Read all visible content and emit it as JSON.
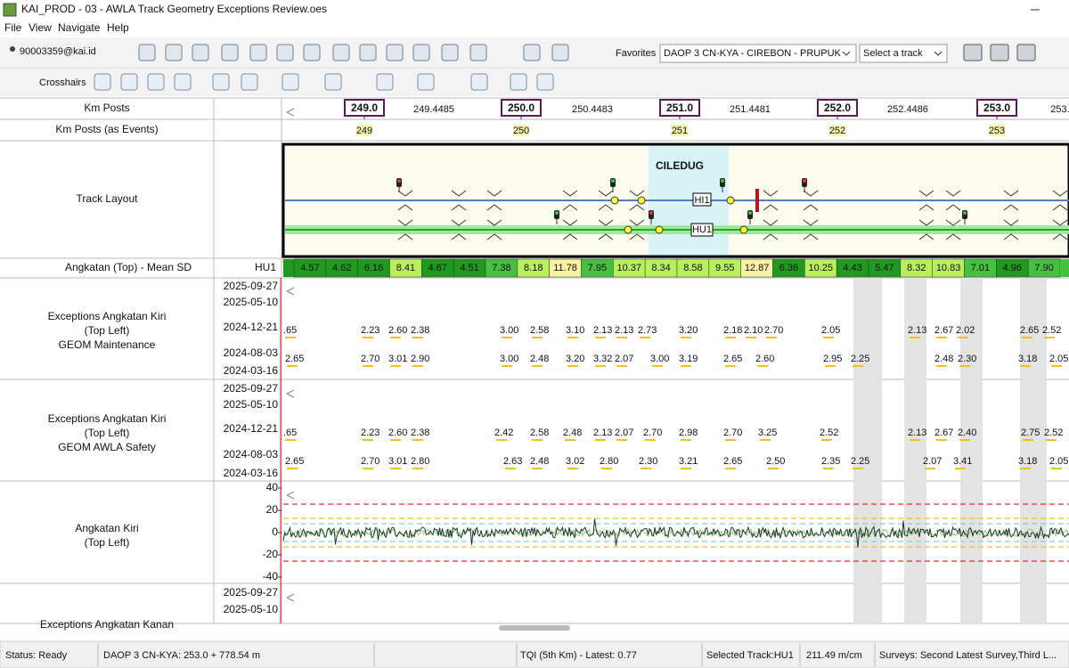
{
  "window": {
    "title": "KAI_PROD - 03 - AWLA Track Geometry Exceptions Review.oes"
  },
  "menu": [
    "File",
    "View",
    "Navigate",
    "Help"
  ],
  "toolbar": {
    "user": "90003359@kai.id",
    "favorites": "Favorites",
    "route": "DAOP 3 CN-KYA - CIREBON - PRUPUK",
    "track_select": "Select a track",
    "crosshairs": "Crosshairs"
  },
  "rows": {
    "km_posts": "Km Posts",
    "km_events": "Km Posts (as Events)",
    "track_layout": "Track Layout",
    "mean_sd": "Angkatan (Top) - Mean SD",
    "mean_sd_track": "HU1",
    "panel1": [
      "Exceptions Angkatan Kiri",
      "(Top Left)",
      "GEOM Maintenance"
    ],
    "panel2": [
      "Exceptions Angkatan Kiri",
      "(Top Left)",
      "GEOM AWLA Safety"
    ],
    "chart": [
      "Angkatan Kiri",
      "(Top Left)"
    ],
    "panel3": [
      "Exceptions Angkatan Kanan"
    ]
  },
  "km_posts": {
    "major": [
      "249.0",
      "250.0",
      "251.0",
      "252.0",
      "253.0"
    ],
    "minor": [
      "249.4485",
      "250.4483",
      "251.4481",
      "252.4486",
      "253."
    ]
  },
  "km_events": [
    "249",
    "250",
    "251",
    "252",
    "253"
  ],
  "track_layout": {
    "station": "CILEDUG",
    "tracks": [
      "HI1",
      "HU1"
    ]
  },
  "mean_sd": [
    "4.57",
    "4.62",
    "6.16",
    "8.41",
    "4.67",
    "4.51",
    "7.38",
    "8.18",
    "11.78",
    "7.95",
    "10.37",
    "8.34",
    "8.58",
    "9.55",
    "12.87",
    "6.36",
    "10.25",
    "4.43",
    "5.47",
    "8.32",
    "10.83",
    "7.01",
    "4.96",
    "7.90"
  ],
  "dates": [
    "2025-09-27",
    "2025-05-10",
    "2024-12-21",
    "2024-08-03",
    "2024-03-16"
  ],
  "exceptions": [
    {
      "rows": [
        [
          ".65",
          "2.23",
          "2.60",
          "2.38",
          "3.00",
          "2.58",
          "3.10",
          "2.13",
          "2.13",
          "2.73",
          "3.20",
          "2.18",
          "2.10",
          "2.70",
          "2.05",
          "2.13",
          "2.67",
          "2.02",
          "2.65",
          "2.52"
        ],
        [
          "2.65",
          "2.70",
          "3.01",
          "2.90",
          "3.00",
          "2.48",
          "3.20",
          "3.32",
          "2.07",
          "3.00",
          "3.19",
          "2.65",
          "2.60",
          "2.95",
          "2.25",
          "2.48",
          "2.30",
          "3.18",
          "2.05"
        ]
      ]
    },
    {
      "rows": [
        [
          ".65",
          "2.23",
          "2.60",
          "2.38",
          "2.42",
          "2.58",
          "2.48",
          "2.13",
          "2.07",
          "2.70",
          "2.98",
          "2.70",
          "3.25",
          "2.52",
          "2.13",
          "2.67",
          "2.40",
          "2.75",
          "2.52"
        ],
        [
          "2.65",
          "2.70",
          "3.01",
          "2.80",
          "2.63",
          "2.48",
          "3.02",
          "2.80",
          "2.30",
          "3.21",
          "2.65",
          "2.50",
          "2.35",
          "2.25",
          "2.07",
          "3.41",
          "3.18",
          "2.05"
        ]
      ]
    }
  ],
  "angkatan_chart": {
    "ylim": [
      -40,
      40
    ],
    "yticks": [
      40,
      20,
      0,
      -20,
      -40
    ]
  },
  "status": [
    "Status: Ready",
    "DAOP 3 CN-KYA: 253.0 + 778.54 m",
    "TQI (5th Km) - Latest: 0.77",
    "Selected Track:HU1",
    "211.49 m/cm",
    "Surveys: Second Latest Survey,Third L..."
  ]
}
